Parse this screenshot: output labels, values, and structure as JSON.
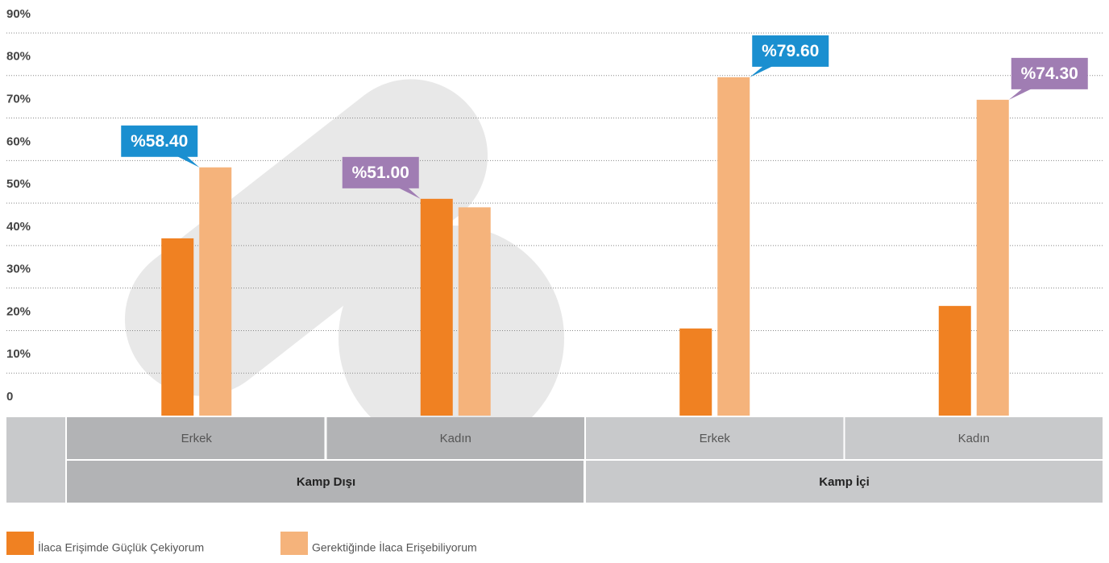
{
  "chart_data": {
    "type": "bar",
    "categories": [
      "Erkek",
      "Kadın",
      "Erkek",
      "Kadın"
    ],
    "category_groups": [
      "Kamp Dışı",
      "Kamp İçi"
    ],
    "series": [
      {
        "name": "İlaca Erişimde Güçlük Çekiyorum",
        "color": "#f08122",
        "values": [
          41.7,
          51.0,
          20.5,
          25.8
        ],
        "value_labels": [
          null,
          "%51.00",
          null,
          null
        ]
      },
      {
        "name": "Gerektiğinde İlaca Erişebiliyorum",
        "color": "#f5b37b",
        "values": [
          58.4,
          49.0,
          79.6,
          74.3
        ],
        "value_labels": [
          "%58.40",
          null,
          "%79.60",
          "%74.30"
        ]
      }
    ],
    "callout_colors": [
      "#1a8fd0",
      "#a07db3"
    ],
    "ylim": [
      0,
      90
    ],
    "yticks": [
      0,
      {
        "value": 10,
        "label": "10%"
      },
      {
        "value": 20,
        "label": "20%"
      },
      {
        "value": 30,
        "label": "30%"
      },
      {
        "value": 40,
        "label": "40%"
      },
      {
        "value": 50,
        "label": "50%"
      },
      {
        "value": 60,
        "label": "60%"
      },
      {
        "value": 70,
        "label": "70%"
      },
      {
        "value": 80,
        "label": "80%"
      },
      {
        "value": 90,
        "label": "90%"
      }
    ],
    "grid": true
  }
}
